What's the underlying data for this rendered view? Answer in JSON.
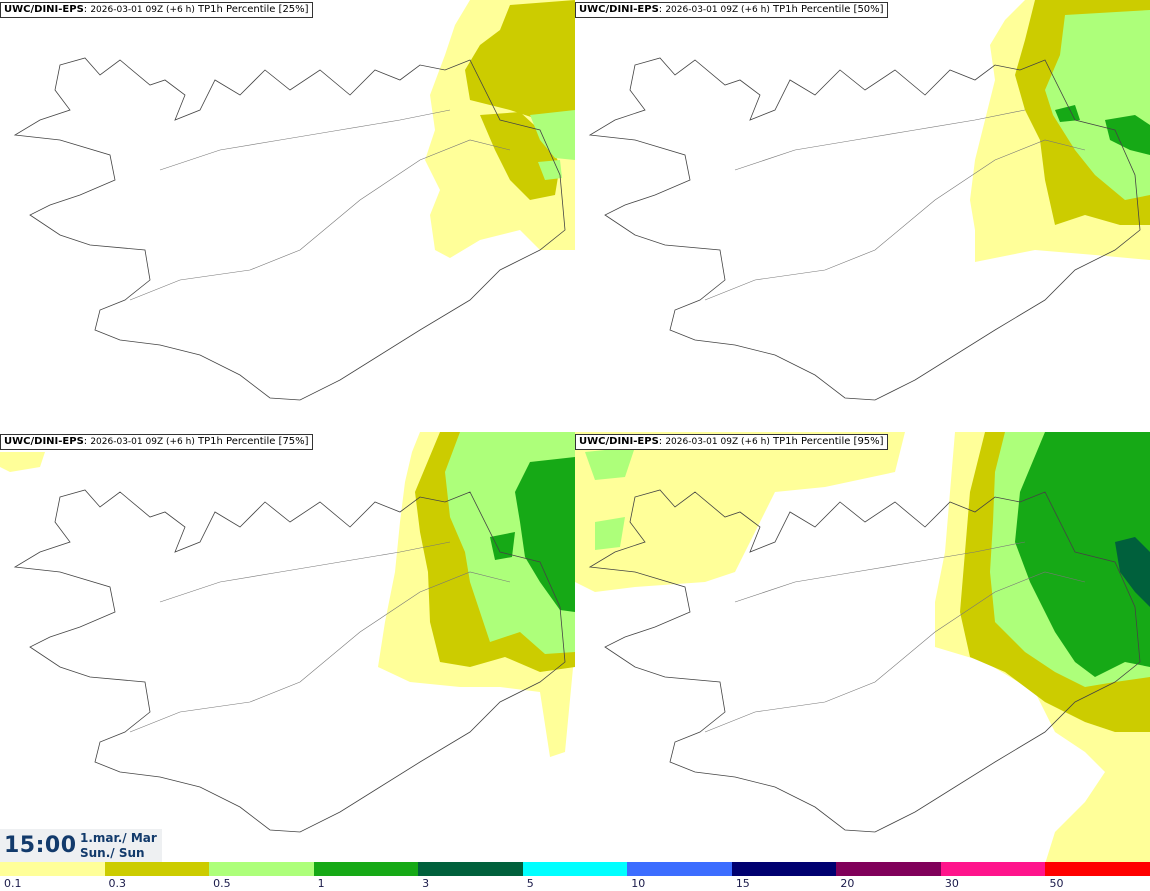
{
  "panels": [
    {
      "model": "UWC/DINI-EPS",
      "run": "2026-03-01 09Z (+6 h)",
      "label": "TP1h Percentile [25%]"
    },
    {
      "model": "UWC/DINI-EPS",
      "run": "2026-03-01 09Z (+6 h)",
      "label": "TP1h Percentile [50%]"
    },
    {
      "model": "UWC/DINI-EPS",
      "run": "2026-03-01 09Z (+6 h)",
      "label": "TP1h Percentile [75%]"
    },
    {
      "model": "UWC/DINI-EPS",
      "run": "2026-03-01 09Z (+6 h)",
      "label": "TP1h Percentile [95%]"
    }
  ],
  "valid": {
    "time": "15:00",
    "date_line1": "1.mar./ Mar",
    "date_line2": "Sun./ Sun"
  },
  "legend": {
    "ticks": [
      "0.1",
      "0.3",
      "0.5",
      "1",
      "3",
      "5",
      "10",
      "15",
      "20",
      "30",
      "50"
    ],
    "colors": [
      "#ffff99",
      "#cccc00",
      "#adff7a",
      "#16a916",
      "#00603c",
      "#00ffff",
      "#3c6dff",
      "#000070",
      "#80005a",
      "#ff148c",
      "#ff0000"
    ]
  },
  "map_colors": {
    "c1": "#ffff99",
    "c2": "#cccc00",
    "c3": "#adff7a",
    "c4": "#16a916",
    "c5": "#00603c"
  },
  "icons": {
    "coastline": "iceland-coastline"
  }
}
